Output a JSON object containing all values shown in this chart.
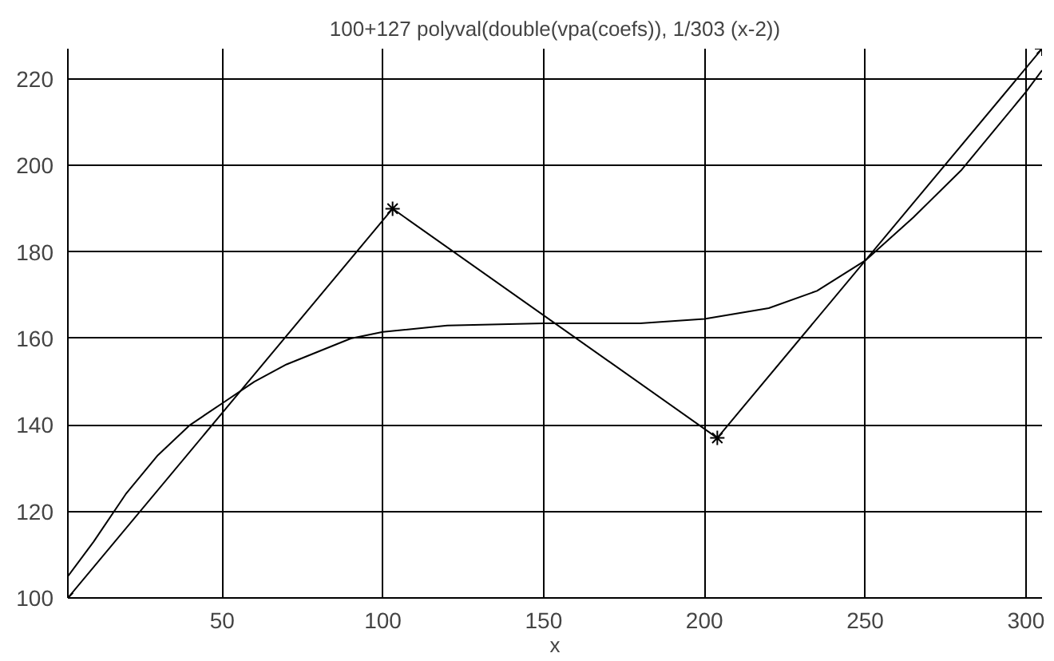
{
  "chart_data": {
    "type": "line",
    "title": "100+127 polyval(double(vpa(coefs)), 1/303 (x-2))",
    "xlabel": "x",
    "xlim": [
      2,
      305
    ],
    "ylim": [
      100,
      227
    ],
    "xticks": [
      50,
      100,
      150,
      200,
      250,
      300
    ],
    "yticks": [
      100,
      120,
      140,
      160,
      180,
      200,
      220
    ],
    "grid": true,
    "series": [
      {
        "color": "#000000",
        "marker": "cross",
        "x": [
          2,
          103,
          204,
          305
        ],
        "values": [
          100,
          190,
          137,
          227
        ]
      },
      {
        "color": "#000000",
        "marker": "none",
        "x": [
          2,
          10,
          20,
          30,
          40,
          50,
          60,
          70,
          80,
          90,
          100,
          120,
          150,
          180,
          200,
          220,
          235,
          250,
          265,
          280,
          290,
          300,
          305
        ],
        "values": [
          105,
          113,
          124,
          133,
          140,
          145,
          150,
          154,
          157,
          160,
          161.5,
          163,
          163.5,
          163.5,
          164.5,
          167,
          171,
          178,
          188,
          199,
          208,
          217,
          222
        ]
      }
    ]
  }
}
